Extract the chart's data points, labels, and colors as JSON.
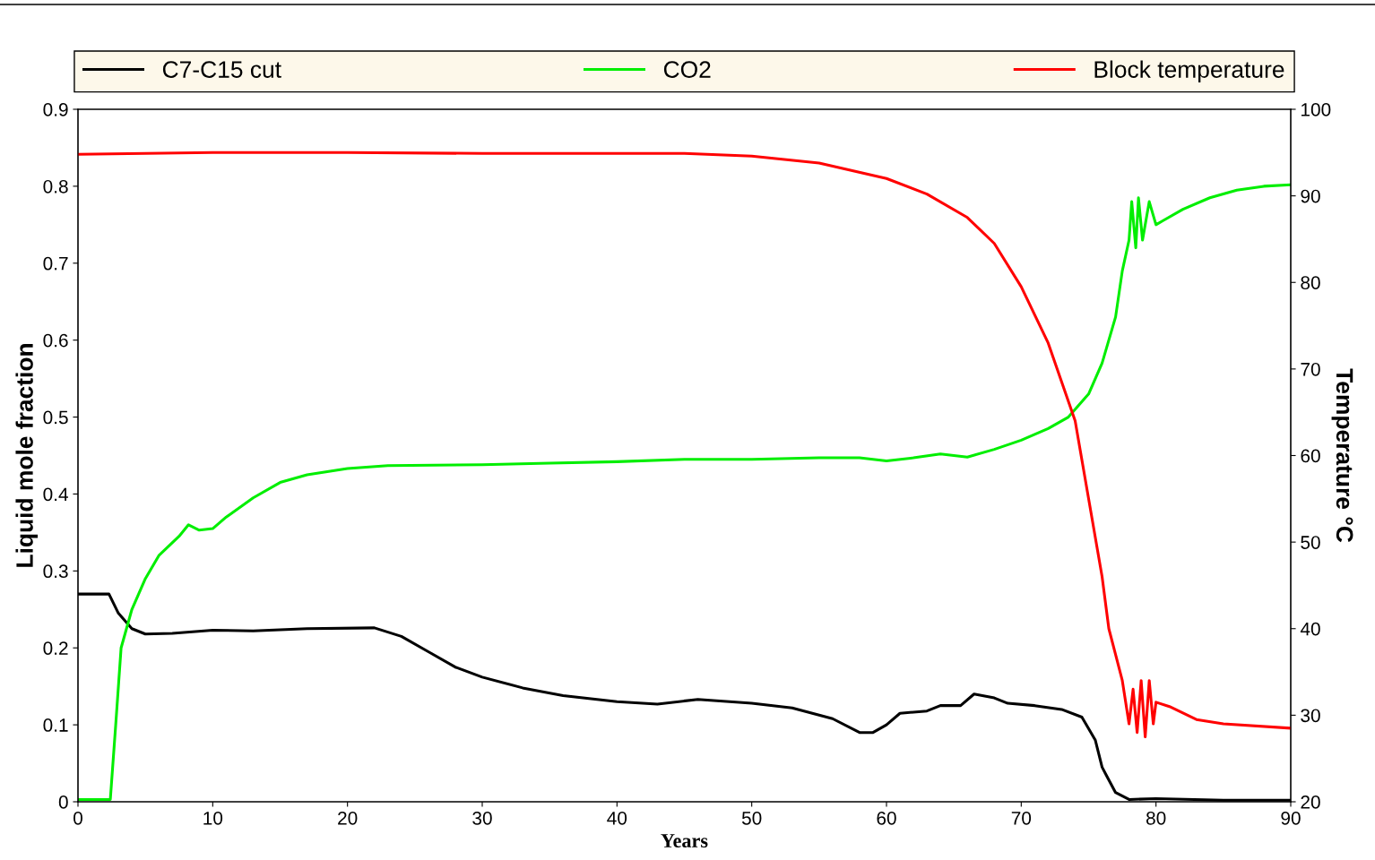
{
  "chart_data": {
    "type": "line",
    "xlabel": "Years",
    "ylabel": "Liquid mole fraction",
    "y2label": "Temperature °C",
    "xlim": [
      0,
      90
    ],
    "xticks": [
      0,
      10,
      20,
      30,
      40,
      50,
      60,
      70,
      80,
      90
    ],
    "ylim": [
      0,
      0.9
    ],
    "yticks": [
      0,
      0.1,
      0.2,
      0.3,
      0.4,
      0.5,
      0.6,
      0.7,
      0.8,
      0.9
    ],
    "y2lim": [
      20,
      100
    ],
    "y2ticks": [
      20,
      30,
      40,
      50,
      60,
      70,
      80,
      90,
      100
    ],
    "grid": false,
    "legend": "top",
    "marker": "none",
    "line_style": "solid",
    "series": [
      {
        "name": "C7-C15 cut",
        "color": "#000000",
        "x": [
          0,
          2.3,
          3,
          4,
          5,
          7,
          10,
          13,
          17,
          22,
          24,
          26,
          28,
          30,
          33,
          36,
          40,
          43,
          46,
          50,
          53,
          56,
          58,
          59,
          60,
          61,
          63,
          64,
          65.5,
          66.5,
          68,
          69,
          71,
          73,
          74.5,
          75.5,
          76,
          76.3,
          77,
          78,
          80,
          85,
          90
        ],
        "values": [
          0.27,
          0.27,
          0.245,
          0.225,
          0.218,
          0.219,
          0.223,
          0.222,
          0.225,
          0.226,
          0.215,
          0.195,
          0.175,
          0.162,
          0.148,
          0.138,
          0.13,
          0.127,
          0.133,
          0.128,
          0.122,
          0.108,
          0.09,
          0.09,
          0.1,
          0.115,
          0.118,
          0.125,
          0.125,
          0.14,
          0.135,
          0.128,
          0.125,
          0.12,
          0.11,
          0.08,
          0.045,
          0.035,
          0.012,
          0.003,
          0.004,
          0.002,
          0.002
        ]
      },
      {
        "name": "CO2",
        "color": "#00ee00",
        "x": [
          0,
          2.4,
          2.8,
          3.2,
          4,
          5,
          6,
          7.5,
          8.2,
          9,
          10,
          11,
          13,
          15,
          17,
          20,
          23,
          30,
          35,
          40,
          45,
          50,
          55,
          58,
          60,
          62,
          64,
          66,
          68,
          70,
          72,
          73.5,
          75,
          76,
          76.5,
          77,
          77.5,
          78,
          78.2,
          78.5,
          78.7,
          79,
          79.5,
          80,
          80.5,
          82,
          84,
          86,
          88,
          90
        ],
        "values": [
          0.003,
          0.003,
          0.1,
          0.2,
          0.25,
          0.29,
          0.32,
          0.345,
          0.36,
          0.353,
          0.355,
          0.37,
          0.395,
          0.415,
          0.425,
          0.433,
          0.437,
          0.438,
          0.44,
          0.442,
          0.445,
          0.445,
          0.447,
          0.447,
          0.443,
          0.447,
          0.452,
          0.448,
          0.458,
          0.47,
          0.485,
          0.5,
          0.53,
          0.57,
          0.6,
          0.63,
          0.69,
          0.73,
          0.78,
          0.72,
          0.785,
          0.73,
          0.78,
          0.75,
          0.755,
          0.77,
          0.785,
          0.795,
          0.8,
          0.802
        ]
      },
      {
        "name": "Block temperature",
        "color": "#ff0000",
        "axis": "y2",
        "x": [
          0,
          10,
          20,
          30,
          45,
          50,
          55,
          60,
          63,
          66,
          68,
          70,
          72,
          74,
          75,
          76,
          76.5,
          77,
          77.5,
          78,
          78.3,
          78.6,
          78.9,
          79.2,
          79.5,
          79.8,
          80,
          81,
          83,
          85,
          90
        ],
        "values": [
          94.8,
          95,
          95,
          94.9,
          94.9,
          94.6,
          93.8,
          92,
          90.2,
          87.5,
          84.5,
          79.5,
          73,
          64,
          55,
          46,
          40,
          37,
          34,
          29,
          33,
          28,
          34,
          27.5,
          34,
          29,
          31.5,
          31,
          29.5,
          29,
          28.5
        ]
      }
    ]
  }
}
